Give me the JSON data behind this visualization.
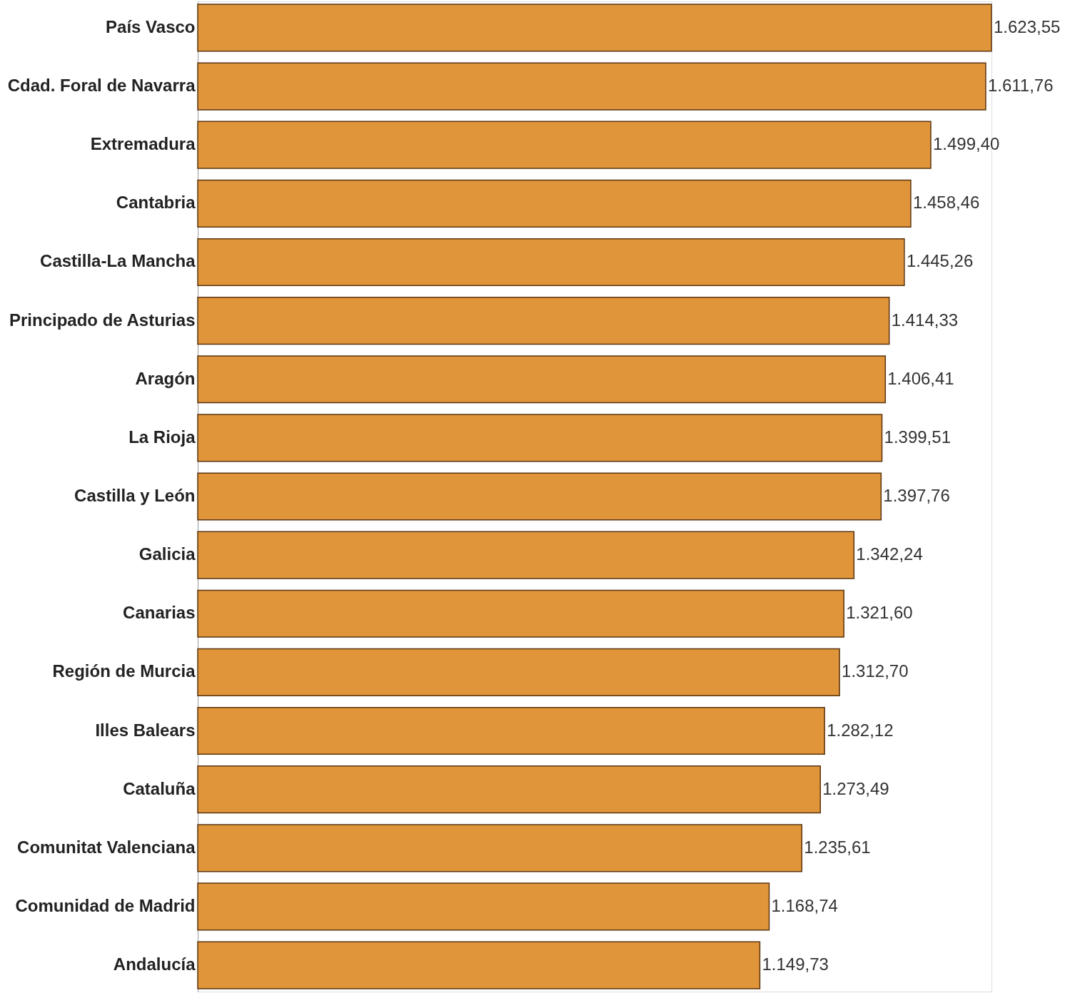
{
  "chart_data": {
    "type": "bar",
    "orientation": "horizontal",
    "categories": [
      "País Vasco",
      "Cdad. Foral de Navarra",
      "Extremadura",
      "Cantabria",
      "Castilla-La Mancha",
      "Principado de Asturias",
      "Aragón",
      "La Rioja",
      "Castilla y León",
      "Galicia",
      "Canarias",
      "Región de Murcia",
      "Illes Balears",
      "Cataluña",
      "Comunitat Valenciana",
      "Comunidad de Madrid",
      "Andalucía"
    ],
    "values": [
      1623.55,
      1611.76,
      1499.4,
      1458.46,
      1445.26,
      1414.33,
      1406.41,
      1399.51,
      1397.76,
      1342.24,
      1321.6,
      1312.7,
      1282.12,
      1273.49,
      1235.61,
      1168.74,
      1149.73
    ],
    "value_labels": [
      "1.623,55",
      "1.611,76",
      "1.499,40",
      "1.458,46",
      "1.445,26",
      "1.414,33",
      "1.406,41",
      "1.399,51",
      "1.397,76",
      "1.342,24",
      "1.321,60",
      "1.312,70",
      "1.282,12",
      "1.273,49",
      "1.235,61",
      "1.168,74",
      "1.149,73"
    ],
    "color": "#e0953a",
    "tick_labels": "y"
  }
}
